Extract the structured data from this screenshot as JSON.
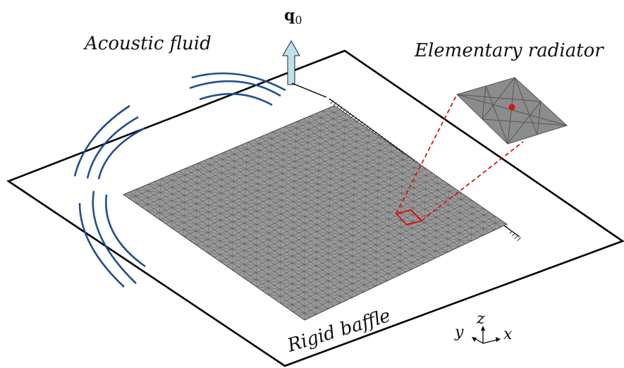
{
  "labels": {
    "acoustic_fluid": "Acoustic fluid",
    "elementary_radiator": "Elementary radiator",
    "rigid_baffle": "Rigid baffle",
    "q_symbol": "q",
    "q_subscript": "0"
  },
  "axes": {
    "x": "x",
    "y": "y",
    "z": "z"
  },
  "colors": {
    "wave_arcs": "#1f4e8c",
    "plate_fill": "#9a9a9a",
    "mesh_line": "#5a5a5a",
    "highlight": "#d41515",
    "arrow_fill": "#bfe0ea",
    "baffle_line": "#000000"
  },
  "mesh": {
    "divisions_u": 34,
    "divisions_v": 30
  }
}
